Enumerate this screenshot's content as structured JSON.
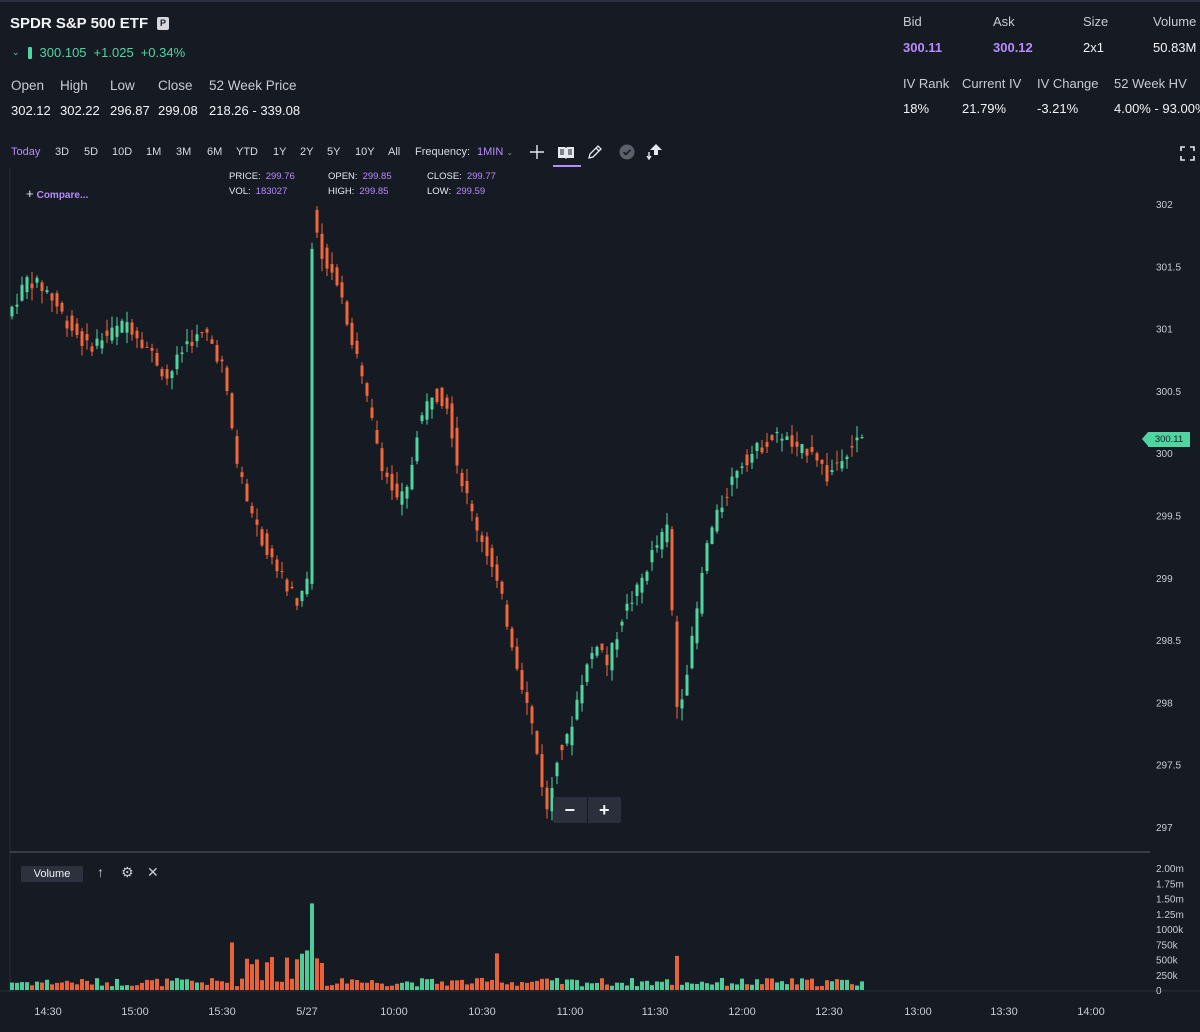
{
  "header": {
    "title": "SPDR S&P 500 ETF",
    "badge": "P",
    "price": "300.105",
    "change": "+1.025",
    "change_pct": "+0.34%",
    "stats": [
      {
        "label": "Open",
        "value": "302.12"
      },
      {
        "label": "High",
        "value": "302.22"
      },
      {
        "label": "Low",
        "value": "296.87"
      },
      {
        "label": "Close",
        "value": "299.08"
      },
      {
        "label": "52 Week Price",
        "value": "218.26 - 339.08"
      }
    ],
    "quote": [
      {
        "label": "Bid",
        "value": "300.11"
      },
      {
        "label": "Ask",
        "value": "300.12"
      },
      {
        "label": "Size",
        "value": "2x1"
      },
      {
        "label": "Volume",
        "value": "50.83M"
      }
    ],
    "iv": [
      {
        "label": "IV Rank",
        "value": "18%"
      },
      {
        "label": "Current IV",
        "value": "21.79%"
      },
      {
        "label": "IV Change",
        "value": "-3.21%"
      },
      {
        "label": "52 Week HV",
        "value": "4.00% - 93.00%"
      }
    ]
  },
  "toolbar": {
    "ranges": [
      "Today",
      "3D",
      "5D",
      "10D",
      "1M",
      "3M",
      "6M",
      "YTD",
      "1Y",
      "2Y",
      "5Y",
      "10Y",
      "All"
    ],
    "active_range": "Today",
    "frequency_label": "Frequency:",
    "frequency_value": "1MIN",
    "tools": [
      "crosshair-icon",
      "study-icon",
      "draw-icon",
      "check-icon",
      "trade-icon"
    ]
  },
  "chart": {
    "compare_label": "Compare...",
    "ohlc": {
      "price_label": "PRICE:",
      "price": "299.76",
      "vol_label": "VOL:",
      "vol": "183027",
      "open_label": "OPEN:",
      "open": "299.85",
      "high_label": "HIGH:",
      "high": "299.85",
      "close_label": "CLOSE:",
      "close": "299.77",
      "low_label": "LOW:",
      "low": "299.59"
    },
    "last_price": "300.11",
    "volume_panel_label": "Volume",
    "colors": {
      "up": "#4fd6a0",
      "down": "#f2673a",
      "accent": "#b78cff"
    }
  },
  "chart_data": {
    "type": "candlestick",
    "y_ticks": [
      "302",
      "301.5",
      "301",
      "300.5",
      "300",
      "299.5",
      "299",
      "298.5",
      "298",
      "297.5",
      "297"
    ],
    "ylim": [
      296.8,
      302.3
    ],
    "volume_ticks": [
      "2.00m",
      "1.75m",
      "1.50m",
      "1.25m",
      "1000k",
      "750k",
      "500k",
      "250k",
      "0"
    ],
    "x_ticks": [
      "14:30",
      "15:00",
      "15:30",
      "5/27",
      "10:00",
      "10:30",
      "11:00",
      "11:30",
      "12:00",
      "12:30",
      "13:00",
      "13:30",
      "14:00"
    ],
    "price_path": [
      [
        0,
        301.1
      ],
      [
        4,
        301.4
      ],
      [
        8,
        301.3
      ],
      [
        12,
        301.05
      ],
      [
        16,
        300.85
      ],
      [
        20,
        300.95
      ],
      [
        24,
        301.05
      ],
      [
        28,
        300.85
      ],
      [
        32,
        300.6
      ],
      [
        36,
        300.9
      ],
      [
        40,
        300.95
      ],
      [
        43,
        300.7
      ],
      [
        46,
        299.9
      ],
      [
        49,
        299.5
      ],
      [
        52,
        299.2
      ],
      [
        55,
        299.0
      ],
      [
        58,
        298.8
      ],
      [
        60,
        299.0
      ],
      [
        61,
        302.0
      ],
      [
        63,
        301.6
      ],
      [
        66,
        301.4
      ],
      [
        69,
        300.9
      ],
      [
        72,
        300.4
      ],
      [
        75,
        299.9
      ],
      [
        78,
        299.6
      ],
      [
        80,
        299.7
      ],
      [
        82,
        300.2
      ],
      [
        85,
        300.5
      ],
      [
        88,
        300.4
      ],
      [
        90,
        299.9
      ],
      [
        93,
        299.5
      ],
      [
        96,
        299.2
      ],
      [
        99,
        298.8
      ],
      [
        102,
        298.3
      ],
      [
        105,
        297.8
      ],
      [
        108,
        297.1
      ],
      [
        110,
        297.6
      ],
      [
        112,
        297.7
      ],
      [
        115,
        298.2
      ],
      [
        118,
        298.5
      ],
      [
        120,
        298.3
      ],
      [
        123,
        298.7
      ],
      [
        126,
        298.9
      ],
      [
        129,
        299.2
      ],
      [
        132,
        299.4
      ],
      [
        134,
        297.9
      ],
      [
        137,
        298.5
      ],
      [
        140,
        299.3
      ],
      [
        143,
        299.6
      ],
      [
        146,
        299.9
      ],
      [
        149,
        300.0
      ],
      [
        152,
        300.1
      ],
      [
        155,
        300.15
      ],
      [
        158,
        300.0
      ],
      [
        161,
        300.05
      ],
      [
        164,
        299.8
      ],
      [
        167,
        300.0
      ],
      [
        170,
        300.1
      ]
    ],
    "y_label_display": "300.11"
  }
}
